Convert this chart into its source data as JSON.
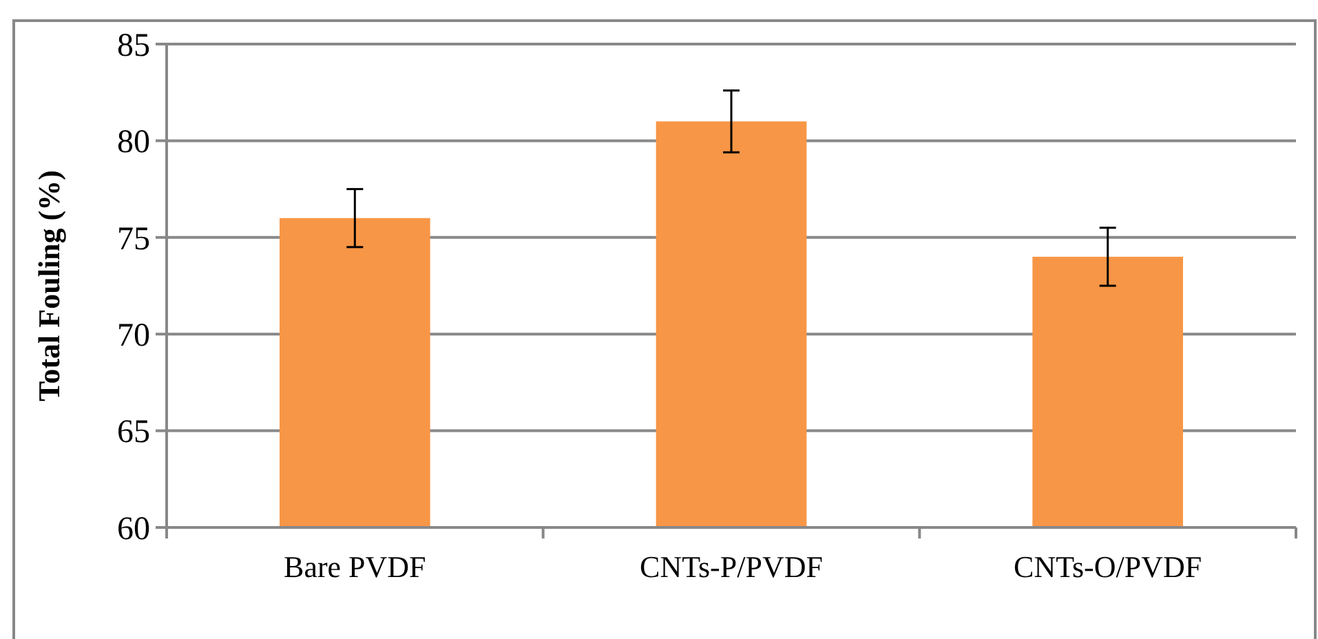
{
  "chart_data": {
    "type": "bar",
    "ylabel": "Total Fouling (%)",
    "categories": [
      "Bare PVDF",
      "CNTs-P/PVDF",
      "CNTs-O/PVDF"
    ],
    "values": [
      76,
      81,
      74
    ],
    "errors": [
      1.5,
      1.6,
      1.5
    ],
    "color": "#f79646",
    "ylim": [
      60,
      85
    ],
    "yticks": [
      60,
      65,
      70,
      75,
      80,
      85
    ],
    "grid": "y"
  }
}
